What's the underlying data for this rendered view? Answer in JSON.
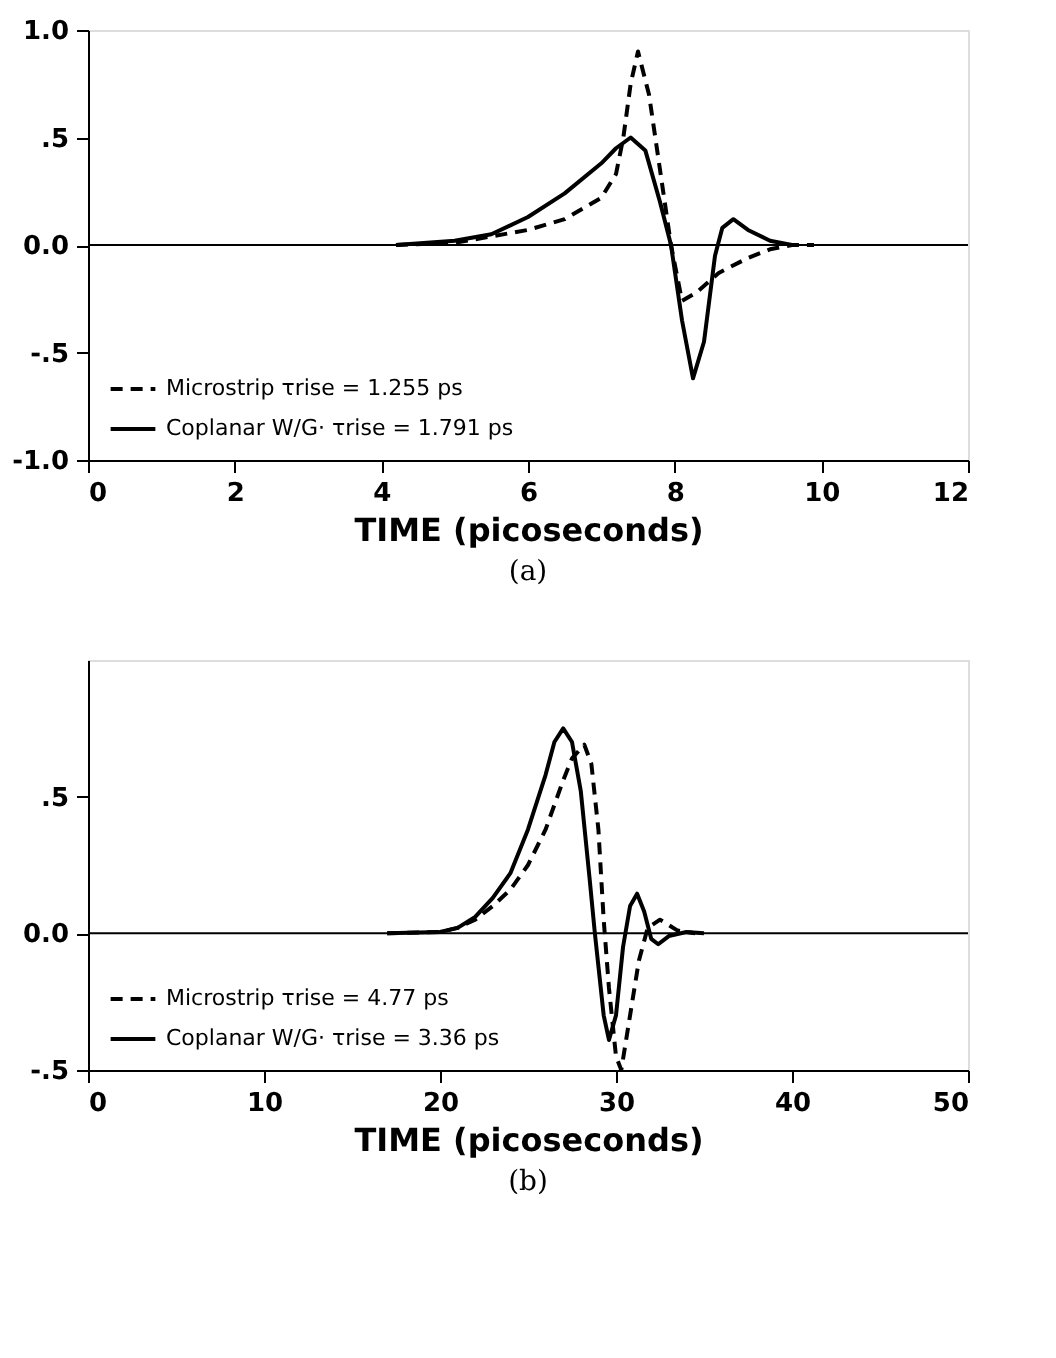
{
  "chart_data": [
    {
      "type": "line",
      "xlabel": "TIME (picoseconds)",
      "annotations": [
        "(a)"
      ],
      "xlim": [
        0,
        12
      ],
      "xticks": [
        0,
        2,
        4,
        6,
        8,
        10,
        12
      ],
      "ylim": [
        -1.0,
        1.0
      ],
      "yticks": [
        {
          "value": -1.0,
          "label": "-1.0"
        },
        {
          "value": -0.5,
          "label": "-.5"
        },
        {
          "value": 0,
          "label": "0.0"
        },
        {
          "value": 0.5,
          "label": ".5"
        },
        {
          "value": 1.0,
          "label": "1.0"
        }
      ],
      "grid": false,
      "legend": "bottom left",
      "ref_lines": [
        {
          "axis": "y",
          "value": 0,
          "color": "#000000"
        }
      ],
      "series": [
        {
          "name": "Microstrip  τrise = 1.255 ps",
          "color": "#000000",
          "line_style": "dashed",
          "x": [
            4.2,
            5.0,
            5.5,
            6.0,
            6.5,
            7.0,
            7.2,
            7.3,
            7.4,
            7.5,
            7.65,
            7.8,
            7.95,
            8.1,
            8.3,
            8.6,
            9.0,
            9.3,
            9.6,
            9.9
          ],
          "values": [
            0,
            0.01,
            0.04,
            0.07,
            0.12,
            0.22,
            0.33,
            0.5,
            0.75,
            0.9,
            0.7,
            0.35,
            0,
            -0.26,
            -0.22,
            -0.13,
            -0.06,
            -0.02,
            0,
            0
          ]
        },
        {
          "name": "Coplanar W/G·  τrise = 1.791 ps",
          "color": "#000000",
          "line_style": "solid",
          "x": [
            4.2,
            5.0,
            5.5,
            6.0,
            6.5,
            7.0,
            7.2,
            7.4,
            7.6,
            7.8,
            7.95,
            8.1,
            8.25,
            8.4,
            8.55,
            8.65,
            8.8,
            9.0,
            9.3,
            9.6
          ],
          "values": [
            0,
            0.02,
            0.05,
            0.13,
            0.24,
            0.38,
            0.45,
            0.5,
            0.44,
            0.2,
            0,
            -0.35,
            -0.62,
            -0.45,
            -0.05,
            0.08,
            0.12,
            0.07,
            0.02,
            0
          ]
        }
      ]
    },
    {
      "type": "line",
      "xlabel": "TIME (picoseconds)",
      "annotations": [
        "(b)"
      ],
      "xlim": [
        0,
        50
      ],
      "xticks": [
        0,
        10,
        20,
        30,
        40,
        50
      ],
      "ylim": [
        -0.5,
        1.0
      ],
      "yticks": [
        {
          "value": -0.5,
          "label": "-.5"
        },
        {
          "value": 0,
          "label": "0.0"
        },
        {
          "value": 0.5,
          "label": ".5"
        }
      ],
      "grid": false,
      "legend": "bottom left",
      "ref_lines": [
        {
          "axis": "y",
          "value": 0,
          "color": "#000000"
        }
      ],
      "series": [
        {
          "name": "Microstrip  τrise = 4.77 ps",
          "color": "#000000",
          "line_style": "dashed",
          "x": [
            17,
            20,
            21,
            22,
            23,
            24,
            25,
            26,
            27,
            27.5,
            28.2,
            28.6,
            29,
            29.3,
            29.6,
            30,
            30.3,
            30.8,
            31.3,
            31.8,
            32.5,
            33,
            33.5,
            34.5
          ],
          "values": [
            0,
            0.005,
            0.02,
            0.05,
            0.1,
            0.16,
            0.25,
            0.38,
            0.56,
            0.64,
            0.69,
            0.62,
            0.38,
            0.05,
            -0.2,
            -0.45,
            -0.5,
            -0.3,
            -0.1,
            0.02,
            0.05,
            0.03,
            0.01,
            0
          ]
        },
        {
          "name": "Coplanar W/G·  τrise = 3.36 ps",
          "color": "#000000",
          "line_style": "solid",
          "x": [
            17,
            20,
            21,
            22,
            23,
            24,
            25,
            26,
            26.5,
            27,
            27.5,
            28,
            28.5,
            28.8,
            29.3,
            29.6,
            30,
            30.4,
            30.8,
            31.2,
            31.6,
            32,
            32.4,
            33,
            34,
            35
          ],
          "values": [
            0,
            0.005,
            0.02,
            0.06,
            0.13,
            0.22,
            0.38,
            0.58,
            0.7,
            0.75,
            0.7,
            0.52,
            0.2,
            0,
            -0.3,
            -0.39,
            -0.3,
            -0.05,
            0.1,
            0.145,
            0.08,
            -0.02,
            -0.04,
            -0.01,
            0.005,
            0
          ]
        }
      ]
    }
  ]
}
